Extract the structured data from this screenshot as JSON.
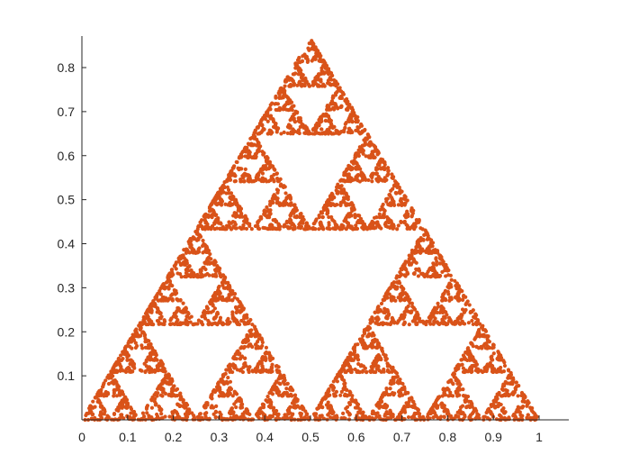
{
  "chart_data": {
    "type": "scatter",
    "title": "",
    "xlabel": "",
    "ylabel": "",
    "xlim": [
      0,
      1.07
    ],
    "ylim": [
      0,
      0.866
    ],
    "grid": false,
    "legend": "none",
    "marker_color": "#D95319",
    "marker": "filled circle",
    "description_values": {
      "shape": "Sierpinski triangle",
      "vertices": [
        [
          0,
          0
        ],
        [
          1,
          0
        ],
        [
          0.5,
          0.866
        ]
      ],
      "depth": 6
    },
    "x_ticks": [
      {
        "value": 0,
        "label": "0"
      },
      {
        "value": 0.1,
        "label": "0.1"
      },
      {
        "value": 0.2,
        "label": "0.2"
      },
      {
        "value": 0.3,
        "label": "0.3"
      },
      {
        "value": 0.4,
        "label": "0.4"
      },
      {
        "value": 0.5,
        "label": "0.5"
      },
      {
        "value": 0.6,
        "label": "0.6"
      },
      {
        "value": 0.7,
        "label": "0.7"
      },
      {
        "value": 0.8,
        "label": "0.8"
      },
      {
        "value": 0.9,
        "label": "0.9"
      },
      {
        "value": 1,
        "label": "1"
      }
    ],
    "y_ticks": [
      {
        "value": 0.1,
        "label": "0.1"
      },
      {
        "value": 0.2,
        "label": "0.2"
      },
      {
        "value": 0.3,
        "label": "0.3"
      },
      {
        "value": 0.4,
        "label": "0.4"
      },
      {
        "value": 0.5,
        "label": "0.5"
      },
      {
        "value": 0.6,
        "label": "0.6"
      },
      {
        "value": 0.7,
        "label": "0.7"
      },
      {
        "value": 0.8,
        "label": "0.8"
      }
    ]
  }
}
